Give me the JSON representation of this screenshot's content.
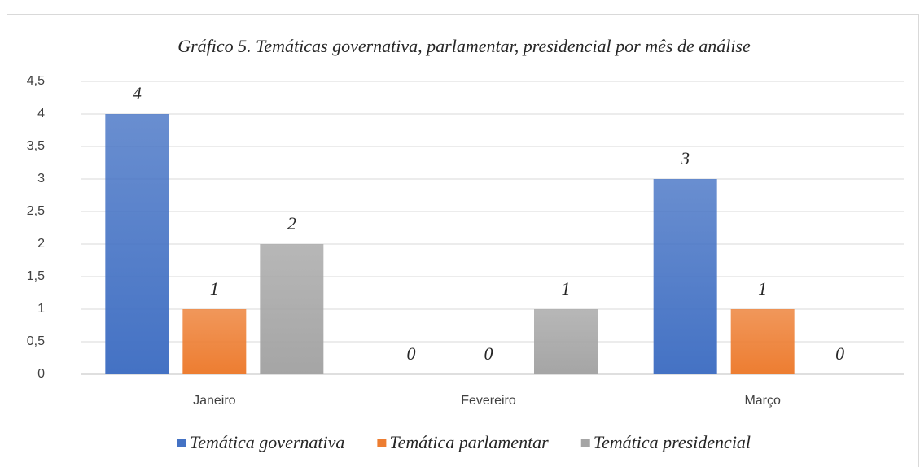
{
  "chart_data": {
    "type": "bar",
    "title": "Gráfico 5. Temáticas governativa, parlamentar, presidencial por mês de análise",
    "categories": [
      "Janeiro",
      "Fevereiro",
      "Março"
    ],
    "series": [
      {
        "name": "Temática governativa",
        "color": "#4472c4",
        "values": [
          4,
          0,
          3
        ]
      },
      {
        "name": "Temática parlamentar",
        "color": "#ed7d31",
        "values": [
          1,
          0,
          1
        ]
      },
      {
        "name": "Temática presidencial",
        "color": "#a5a5a5",
        "values": [
          2,
          1,
          0
        ]
      }
    ],
    "ylim": [
      0,
      4.5
    ],
    "yticks": [
      0,
      {
        "value": 0.5,
        "label": "0,5"
      },
      1,
      {
        "value": 1.5,
        "label": "1,5"
      },
      2,
      {
        "value": 2.5,
        "label": "2,5"
      },
      3,
      {
        "value": 3.5,
        "label": "3,5"
      },
      4,
      {
        "value": 4.5,
        "label": "4,5"
      }
    ],
    "grid": true,
    "legend": "bottom"
  }
}
